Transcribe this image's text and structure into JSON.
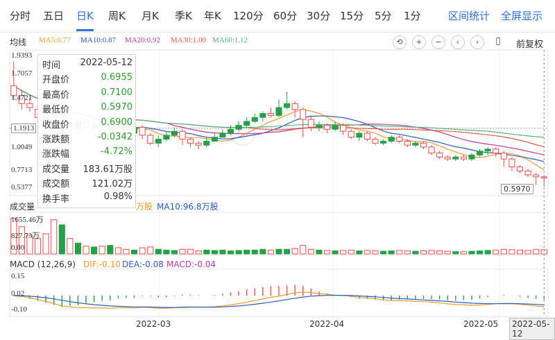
{
  "tabs": [
    "分时",
    "五日",
    "日K",
    "周K",
    "月K",
    "季K",
    "年K",
    "120分",
    "60分",
    "30分",
    "15分",
    "5分",
    "1分"
  ],
  "active_tab": "日K",
  "tab_right": [
    "区间统计",
    "全屏显示"
  ],
  "ma": {
    "title": "均线",
    "items": [
      {
        "label": "MA5:0.77",
        "color": "#f29a2e"
      },
      {
        "label": "MA10:0.87",
        "color": "#2a5db8"
      },
      {
        "label": "MA20:0.92",
        "color": "#c2369a"
      },
      {
        "label": "MA30:1.00",
        "color": "#e05a4a"
      },
      {
        "label": "MA60:1.12",
        "color": "#58b07a"
      }
    ]
  },
  "toolbar": {
    "icons": [
      "reset-icon",
      "zoom-in-icon",
      "zoom-out-icon",
      "left-arrow-icon",
      "right-arrow-icon",
      "candlestick-icon"
    ],
    "restore": "前复权"
  },
  "price_axis": [
    "1.9393",
    "1.7057",
    "1.4721",
    "1.1913",
    "1.0049",
    "0.7713",
    "0.5377"
  ],
  "tooltip": {
    "rows": [
      {
        "label": "时间",
        "value": "2022-05-12",
        "tone": "normal"
      },
      {
        "label": "开盘价",
        "value": "0.6955",
        "tone": "green"
      },
      {
        "label": "最高价",
        "value": "0.7100",
        "tone": "green"
      },
      {
        "label": "最低价",
        "value": "0.5970",
        "tone": "green"
      },
      {
        "label": "收盘价",
        "value": "0.6900",
        "tone": "green"
      },
      {
        "label": "涨跌额",
        "value": "-0.0342",
        "tone": "green"
      },
      {
        "label": "涨跌幅",
        "value": "-4.72%",
        "tone": "green"
      },
      {
        "label": "成交量",
        "value": "183.61万股",
        "tone": "normal"
      },
      {
        "label": "成交额",
        "value": "121.02万",
        "tone": "normal"
      },
      {
        "label": "换手率",
        "value": "0.98%",
        "tone": "normal"
      }
    ]
  },
  "low_callout": "0.5970",
  "volume": {
    "title": "成交量",
    "ma5_label": "万股",
    "ma10_label": "MA10:96.8万股",
    "axis": [
      "1655.46万",
      "827.73万",
      "0.00"
    ]
  },
  "macd": {
    "title": "MACD (12,26,9)",
    "dif_label": "DIF:-0.10",
    "dea_label": "DEA:-0.08",
    "macd_label": "MACD:-0.04",
    "axis": [
      "0.15",
      "0.02",
      "-0.10"
    ]
  },
  "x_axis": {
    "labels": [
      "2022-03",
      "2022-04",
      "2022-05"
    ],
    "cursor": "2022-05-12"
  },
  "chart_data": {
    "type": "candlestick",
    "x_axis_labels": [
      "2022-03",
      "2022-04",
      "2022-05"
    ],
    "y_range": [
      0.5377,
      1.9393
    ],
    "candles": [
      [
        1.52,
        1.62,
        1.86,
        1.48,
        92
      ],
      [
        1.44,
        1.52,
        1.58,
        1.38,
        70
      ],
      [
        1.4,
        1.44,
        1.5,
        1.36,
        48
      ],
      [
        1.3,
        1.38,
        1.42,
        1.26,
        40
      ],
      [
        1.22,
        1.3,
        1.34,
        1.18,
        52
      ],
      [
        1.12,
        1.22,
        1.26,
        1.08,
        88
      ],
      [
        1.24,
        1.12,
        1.28,
        1.06,
        75
      ],
      [
        1.18,
        1.24,
        1.28,
        1.1,
        40
      ],
      [
        1.26,
        1.18,
        1.3,
        1.14,
        28
      ],
      [
        1.2,
        1.26,
        1.28,
        1.16,
        20
      ],
      [
        1.22,
        1.2,
        1.26,
        1.16,
        18
      ],
      [
        1.16,
        1.22,
        1.24,
        1.12,
        20
      ],
      [
        1.24,
        1.16,
        1.26,
        1.12,
        22
      ],
      [
        1.18,
        1.24,
        1.27,
        1.15,
        16
      ],
      [
        1.14,
        1.18,
        1.2,
        1.1,
        12
      ],
      [
        1.2,
        1.14,
        1.24,
        1.12,
        10
      ],
      [
        1.12,
        1.2,
        1.22,
        1.08,
        16
      ],
      [
        1.04,
        1.12,
        1.14,
        1.02,
        18
      ],
      [
        1.08,
        1.04,
        1.12,
        1.0,
        12
      ],
      [
        1.12,
        1.08,
        1.16,
        1.06,
        10
      ],
      [
        1.16,
        1.12,
        1.2,
        1.1,
        9
      ],
      [
        1.08,
        1.16,
        1.18,
        1.02,
        12
      ],
      [
        1.04,
        1.08,
        1.1,
        1.0,
        12
      ],
      [
        1.02,
        1.04,
        1.06,
        0.98,
        8
      ],
      [
        1.06,
        1.02,
        1.1,
        1.0,
        10
      ],
      [
        1.1,
        1.06,
        1.14,
        1.06,
        9
      ],
      [
        1.14,
        1.1,
        1.18,
        1.1,
        10
      ],
      [
        1.18,
        1.14,
        1.22,
        1.12,
        8
      ],
      [
        1.22,
        1.18,
        1.26,
        1.16,
        9
      ],
      [
        1.26,
        1.22,
        1.3,
        1.2,
        10
      ],
      [
        1.3,
        1.26,
        1.34,
        1.24,
        10
      ],
      [
        1.34,
        1.3,
        1.36,
        1.26,
        12
      ],
      [
        1.32,
        1.34,
        1.4,
        1.3,
        10
      ],
      [
        1.4,
        1.32,
        1.48,
        1.3,
        12
      ],
      [
        1.44,
        1.4,
        1.56,
        1.38,
        12
      ],
      [
        1.38,
        1.44,
        1.46,
        1.3,
        14
      ],
      [
        1.28,
        1.38,
        1.4,
        1.1,
        22
      ],
      [
        1.2,
        1.28,
        1.32,
        1.16,
        12
      ],
      [
        1.22,
        1.2,
        1.26,
        1.16,
        10
      ],
      [
        1.18,
        1.22,
        1.24,
        1.14,
        9
      ],
      [
        1.22,
        1.18,
        1.26,
        1.16,
        8
      ],
      [
        1.16,
        1.22,
        1.24,
        1.12,
        9
      ],
      [
        1.1,
        1.16,
        1.18,
        1.08,
        10
      ],
      [
        1.14,
        1.1,
        1.16,
        1.06,
        8
      ],
      [
        1.08,
        1.14,
        1.16,
        1.06,
        9
      ],
      [
        1.04,
        1.08,
        1.1,
        1.02,
        8
      ],
      [
        1.06,
        1.04,
        1.08,
        1.02,
        7
      ],
      [
        1.1,
        1.06,
        1.12,
        1.04,
        8
      ],
      [
        1.06,
        1.1,
        1.12,
        1.04,
        9
      ],
      [
        1.02,
        1.06,
        1.08,
        1.0,
        8
      ],
      [
        1.04,
        1.02,
        1.06,
        1.0,
        7
      ],
      [
        1.0,
        1.04,
        1.06,
        0.98,
        8
      ],
      [
        0.94,
        1.0,
        1.02,
        0.92,
        9
      ],
      [
        0.9,
        0.94,
        0.96,
        0.88,
        8
      ],
      [
        0.88,
        0.9,
        0.92,
        0.86,
        7
      ],
      [
        0.9,
        0.88,
        0.92,
        0.86,
        6
      ],
      [
        0.88,
        0.9,
        0.92,
        0.86,
        6
      ],
      [
        0.92,
        0.88,
        0.94,
        0.86,
        7
      ],
      [
        0.96,
        0.92,
        0.98,
        0.9,
        8
      ],
      [
        0.98,
        0.96,
        1.0,
        0.92,
        9
      ],
      [
        0.94,
        0.98,
        1.0,
        0.9,
        10
      ],
      [
        0.88,
        0.94,
        0.96,
        0.8,
        12
      ],
      [
        0.8,
        0.88,
        0.9,
        0.76,
        11
      ],
      [
        0.76,
        0.8,
        0.82,
        0.74,
        10
      ],
      [
        0.72,
        0.76,
        0.78,
        0.7,
        9
      ],
      [
        0.7,
        0.72,
        0.74,
        0.62,
        12
      ],
      [
        0.69,
        0.7,
        0.71,
        0.6,
        11
      ]
    ],
    "ma_series": [
      "MA5",
      "MA10",
      "MA20",
      "MA30",
      "MA60"
    ]
  }
}
